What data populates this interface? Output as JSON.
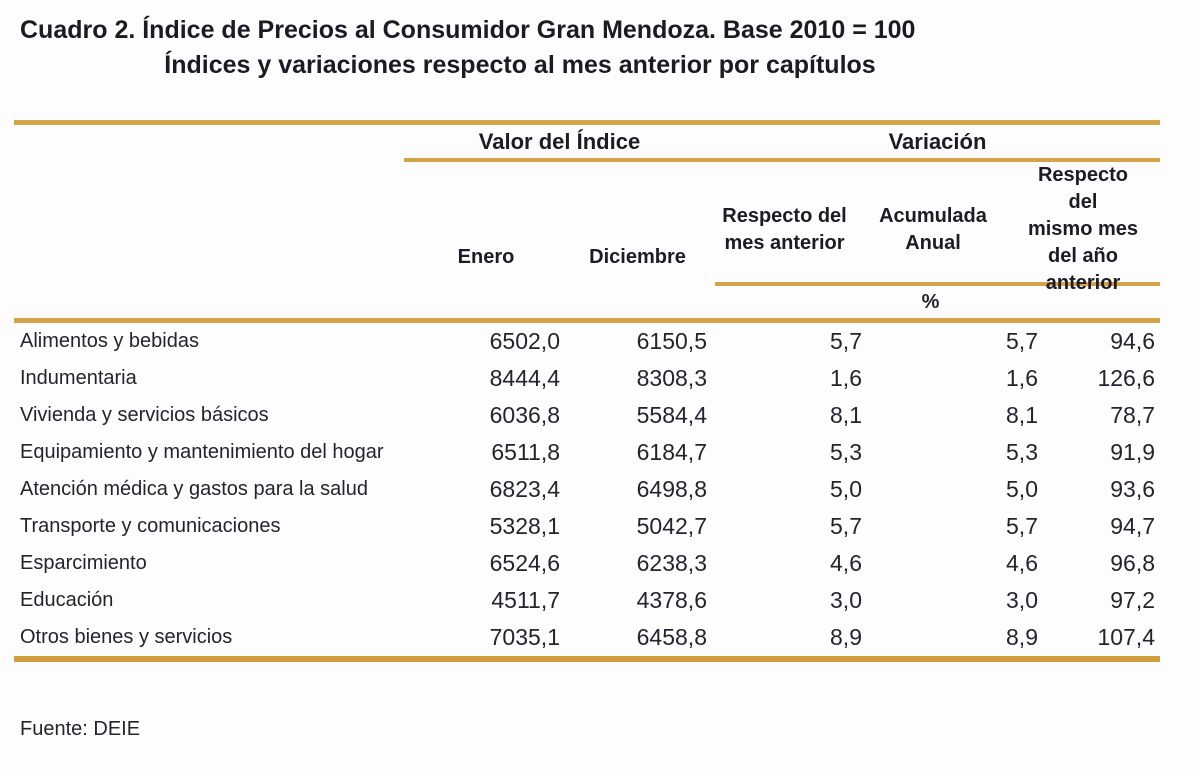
{
  "title": {
    "line1": "Cuadro 2. Índice de Precios al Consumidor Gran Mendoza. Base 2010 = 100",
    "line2": "Índices y variaciones respecto al mes anterior por capítulos"
  },
  "table": {
    "group_headers": {
      "valor": "Valor del Índice",
      "variacion": "Variación"
    },
    "columns": [
      "Enero",
      "Diciembre",
      "Respecto del\nmes anterior",
      "Acumulada\nAnual",
      "Respecto del\nmismo mes\ndel año\nanterior"
    ],
    "unit_label": "%",
    "rows": [
      {
        "label": "Alimentos y bebidas",
        "values": [
          "6502,0",
          "6150,5",
          "5,7",
          "5,7",
          "94,6"
        ]
      },
      {
        "label": "Indumentaria",
        "values": [
          "8444,4",
          "8308,3",
          "1,6",
          "1,6",
          "126,6"
        ]
      },
      {
        "label": "Vivienda y servicios básicos",
        "values": [
          "6036,8",
          "5584,4",
          "8,1",
          "8,1",
          "78,7"
        ]
      },
      {
        "label": "Equipamiento y mantenimiento del hogar",
        "values": [
          "6511,8",
          "6184,7",
          "5,3",
          "5,3",
          "91,9"
        ]
      },
      {
        "label": "Atención médica y gastos para la salud",
        "values": [
          "6823,4",
          "6498,8",
          "5,0",
          "5,0",
          "93,6"
        ]
      },
      {
        "label": "Transporte y comunicaciones",
        "values": [
          "5328,1",
          "5042,7",
          "5,7",
          "5,7",
          "94,7"
        ]
      },
      {
        "label": "Esparcimiento",
        "values": [
          "6524,6",
          "6238,3",
          "4,6",
          "4,6",
          "96,8"
        ]
      },
      {
        "label": "Educación",
        "values": [
          "4511,7",
          "4378,6",
          "3,0",
          "3,0",
          "97,2"
        ]
      },
      {
        "label": "Otros bienes y servicios",
        "values": [
          "7035,1",
          "6458,8",
          "8,9",
          "8,9",
          "107,4"
        ]
      }
    ]
  },
  "footer": {
    "source": "Fuente: DEIE"
  },
  "colors": {
    "accent_gold": "#d5a348",
    "accent_gold_dark": "#d19d3c",
    "text": "#26232e"
  }
}
